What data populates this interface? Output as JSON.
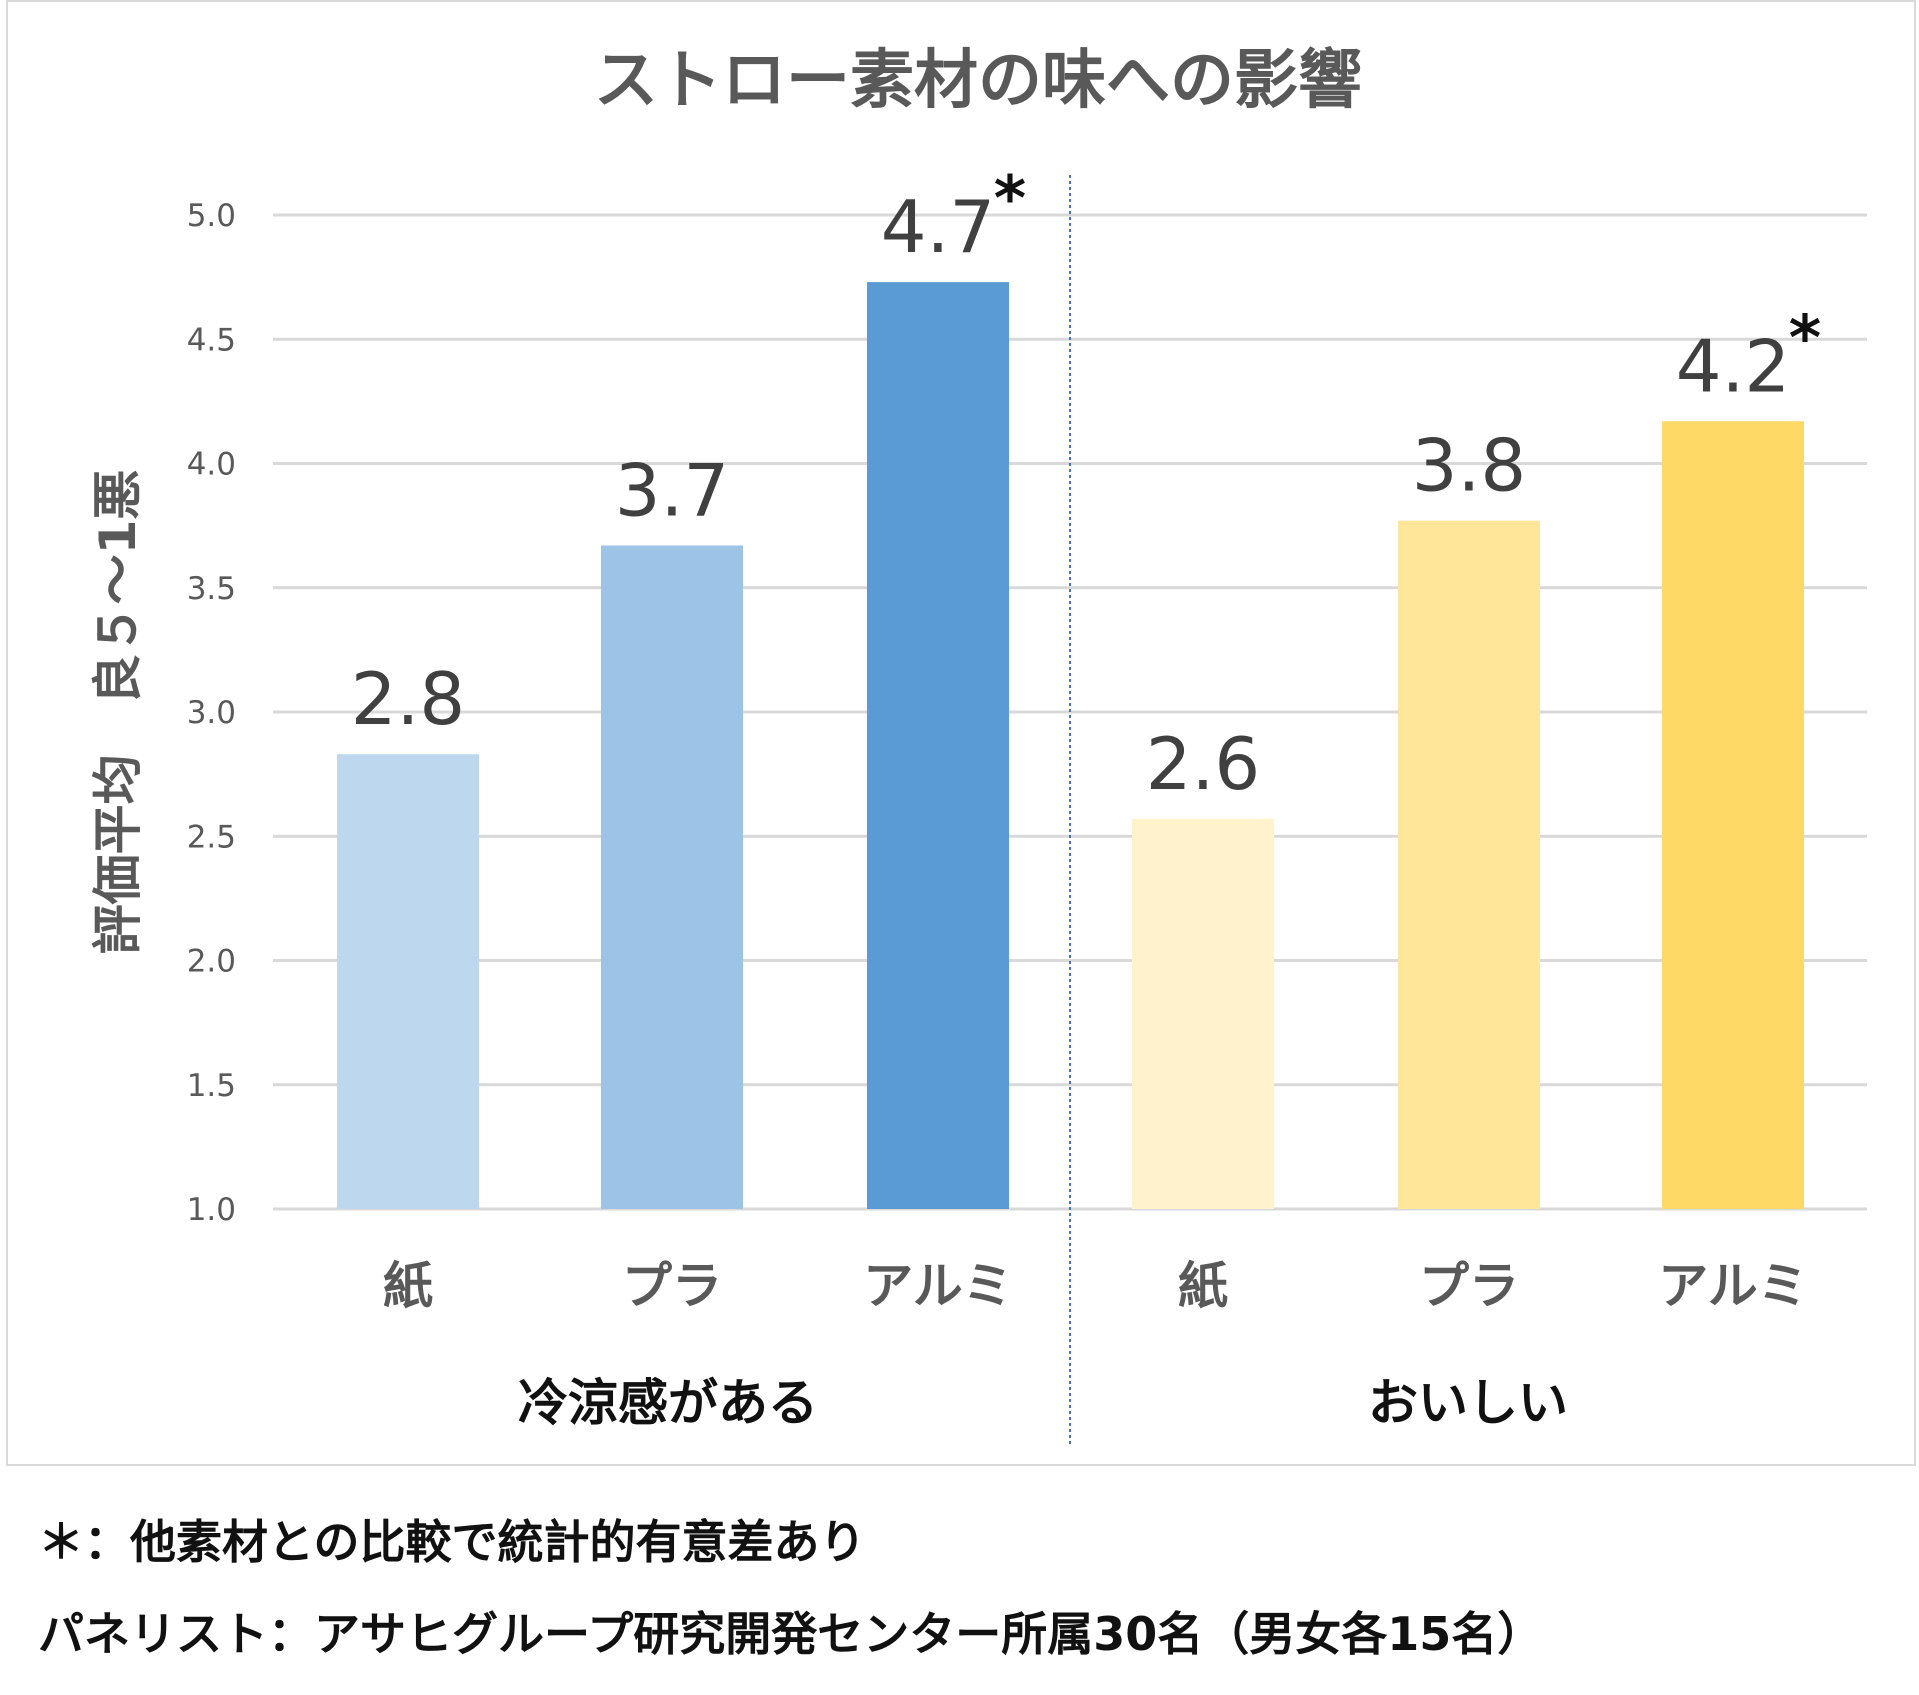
{
  "chart_data": {
    "type": "bar",
    "title": "ストロー素材の味への影響",
    "ylabel": "評価平均　良５～1悪",
    "ylim": [
      1.0,
      5.0
    ],
    "yticks": [
      "1.0",
      "1.5",
      "2.0",
      "2.5",
      "3.0",
      "3.5",
      "4.0",
      "4.5",
      "5.0"
    ],
    "grid": true,
    "groups": [
      {
        "name": "冷涼感がある",
        "categories": [
          "紙",
          "プラ",
          "アルミ"
        ],
        "values": [
          2.83,
          3.67,
          4.73
        ],
        "labels": [
          "2.8",
          "3.7",
          "4.7"
        ],
        "significant": [
          false,
          false,
          true
        ],
        "colors": [
          "#bdd7ee",
          "#9dc3e6",
          "#5b9bd5"
        ]
      },
      {
        "name": "おいしい",
        "categories": [
          "紙",
          "プラ",
          "アルミ"
        ],
        "values": [
          2.57,
          3.77,
          4.17
        ],
        "labels": [
          "2.6",
          "3.8",
          "4.2"
        ],
        "significant": [
          false,
          false,
          true
        ],
        "colors": [
          "#fff2cc",
          "#ffe699",
          "#ffd966"
        ]
      }
    ],
    "significance_marker": "*"
  },
  "footnotes": {
    "line1": "＊：他素材との比較で統計的有意差あり",
    "line2": "パネリスト：アサヒグループ研究開発センター所属30名（男女各15名）"
  }
}
